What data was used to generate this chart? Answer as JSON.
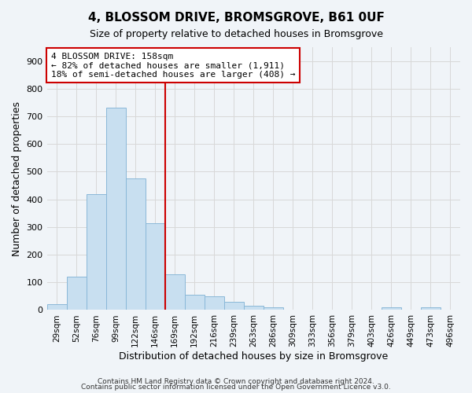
{
  "title": "4, BLOSSOM DRIVE, BROMSGROVE, B61 0UF",
  "subtitle": "Size of property relative to detached houses in Bromsgrove",
  "xlabel": "Distribution of detached houses by size in Bromsgrove",
  "ylabel": "Number of detached properties",
  "bar_values": [
    20,
    120,
    420,
    730,
    475,
    315,
    130,
    55,
    50,
    30,
    15,
    10,
    0,
    0,
    0,
    0,
    0,
    10,
    0,
    10,
    0
  ],
  "bin_labels": [
    "29sqm",
    "52sqm",
    "76sqm",
    "99sqm",
    "122sqm",
    "146sqm",
    "169sqm",
    "192sqm",
    "216sqm",
    "239sqm",
    "263sqm",
    "286sqm",
    "309sqm",
    "333sqm",
    "356sqm",
    "379sqm",
    "403sqm",
    "426sqm",
    "449sqm",
    "473sqm",
    "496sqm"
  ],
  "bar_color": "#c8dff0",
  "bar_edge_color": "#8ab8d8",
  "bar_width": 1.0,
  "vline_color": "#cc0000",
  "vline_pos": 5.52,
  "ylim": [
    0,
    950
  ],
  "yticks": [
    0,
    100,
    200,
    300,
    400,
    500,
    600,
    700,
    800,
    900
  ],
  "annotation_text": "4 BLOSSOM DRIVE: 158sqm\n← 82% of detached houses are smaller (1,911)\n18% of semi-detached houses are larger (408) →",
  "annotation_box_color": "#ffffff",
  "annotation_box_edge": "#cc0000",
  "grid_color": "#d8d8d8",
  "bg_color": "#f0f4f8",
  "plot_bg": "#f0f4f8",
  "footer1": "Contains HM Land Registry data © Crown copyright and database right 2024.",
  "footer2": "Contains public sector information licensed under the Open Government Licence v3.0."
}
